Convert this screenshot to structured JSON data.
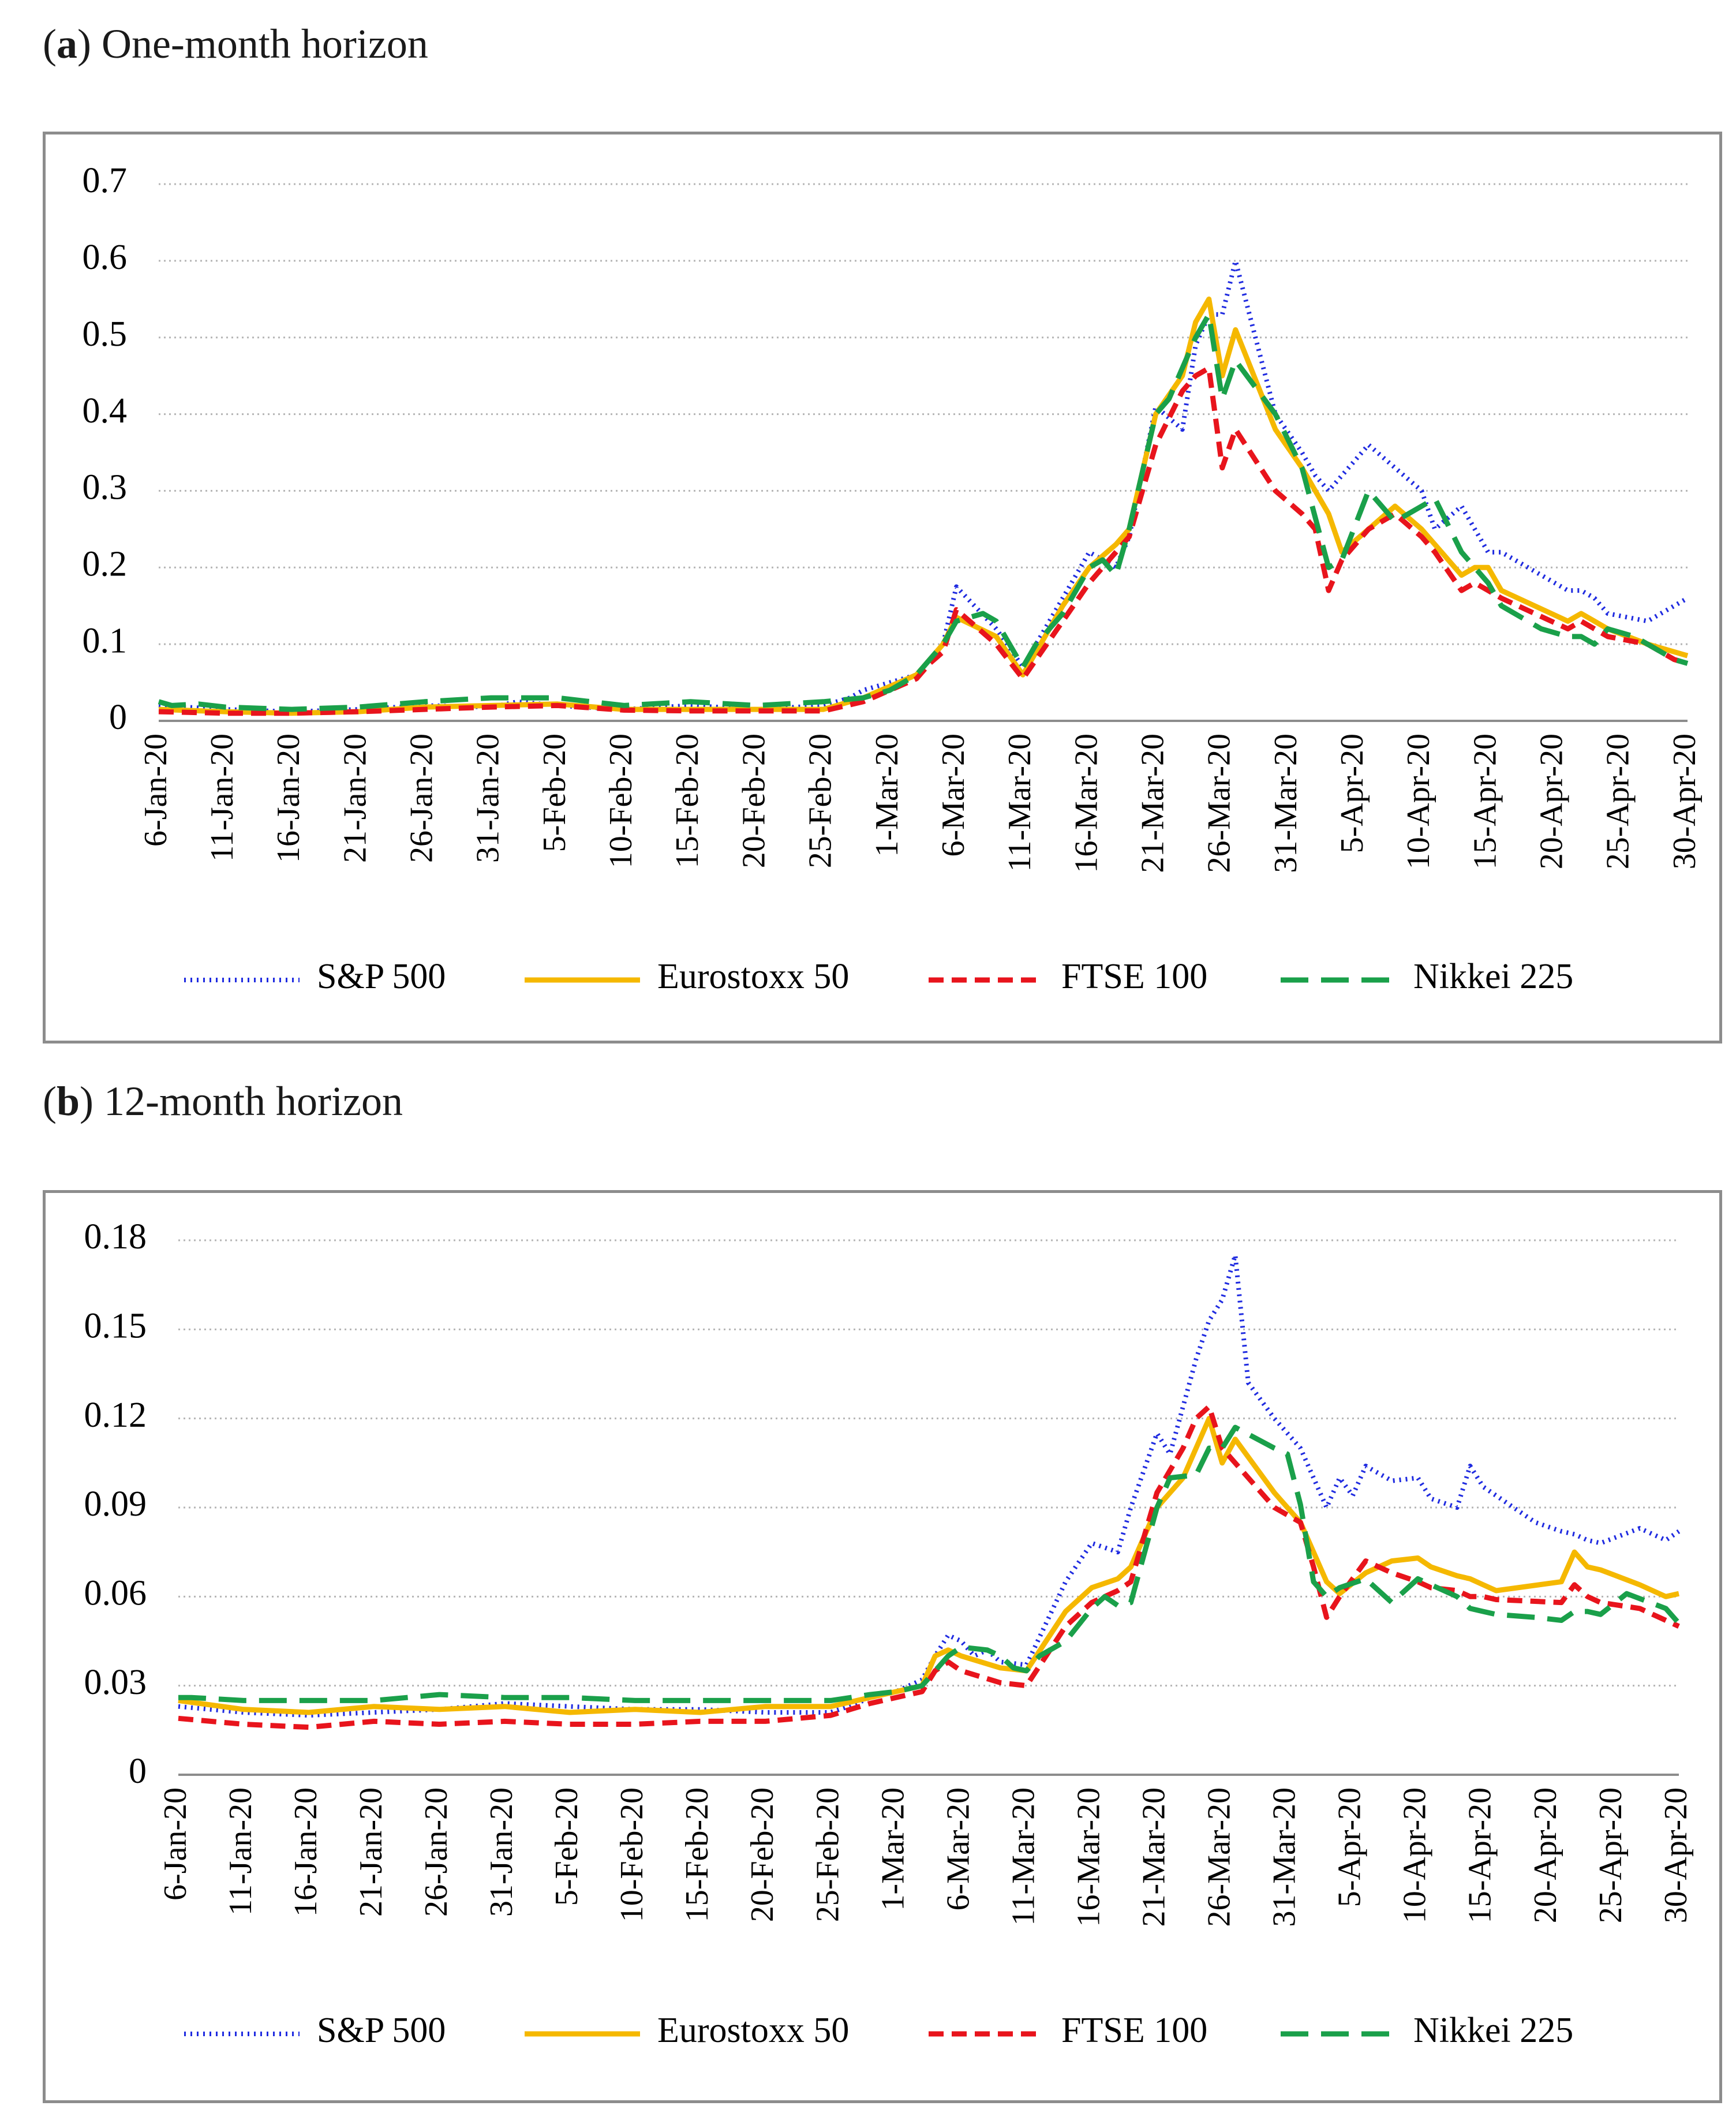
{
  "panels": [
    {
      "letter": "a",
      "title": "One-month horizon"
    },
    {
      "letter": "b",
      "title": "12-month horizon"
    }
  ],
  "series_style": [
    {
      "name": "S&P 500",
      "color": "#1f2be0",
      "dash": "dotted"
    },
    {
      "name": "Eurostoxx 50",
      "color": "#f5b800",
      "dash": "solid"
    },
    {
      "name": "FTSE 100",
      "color": "#e8141c",
      "dash": "dashed"
    },
    {
      "name": "Nikkei 225",
      "color": "#1aa04a",
      "dash": "longdash"
    }
  ],
  "chart_data": [
    {
      "type": "line",
      "title": "(a) One-month horizon",
      "xlabel": "",
      "ylabel": "",
      "ylim": [
        0,
        0.7
      ],
      "yticks": [
        0,
        0.1,
        0.2,
        0.3,
        0.4,
        0.5,
        0.6,
        0.7
      ],
      "ytick_labels": [
        "0",
        "0.1",
        "0.2",
        "0.3",
        "0.4",
        "0.5",
        "0.6",
        "0.7"
      ],
      "x_days_range": [
        0,
        115
      ],
      "xtick_labels": [
        "6-Jan-20",
        "11-Jan-20",
        "16-Jan-20",
        "21-Jan-20",
        "26-Jan-20",
        "31-Jan-20",
        "5-Feb-20",
        "10-Feb-20",
        "15-Feb-20",
        "20-Feb-20",
        "25-Feb-20",
        "1-Mar-20",
        "6-Mar-20",
        "11-Mar-20",
        "16-Mar-20",
        "21-Mar-20",
        "26-Mar-20",
        "31-Mar-20",
        "5-Apr-20",
        "10-Apr-20",
        "15-Apr-20",
        "20-Apr-20",
        "25-Apr-20",
        "30-Apr-20"
      ],
      "x_note": "x values are days since 6-Jan-20",
      "legend": "bottom",
      "series": [
        {
          "name": "S&P 500",
          "x": [
            0,
            2,
            5,
            10,
            15,
            20,
            25,
            27,
            30,
            35,
            40,
            45,
            50,
            52,
            53,
            57,
            58,
            59,
            60,
            63,
            65,
            68,
            70,
            72,
            73,
            75,
            77,
            78,
            79,
            80,
            81,
            84,
            86,
            87,
            88,
            91,
            93,
            95,
            96,
            98,
            100,
            101,
            106,
            107,
            108,
            109,
            112,
            114,
            115
          ],
          "y": [
            0.02,
            0.018,
            0.015,
            0.012,
            0.015,
            0.02,
            0.018,
            0.025,
            0.02,
            0.015,
            0.02,
            0.015,
            0.02,
            0.03,
            0.04,
            0.06,
            0.08,
            0.1,
            0.175,
            0.12,
            0.07,
            0.16,
            0.22,
            0.2,
            0.24,
            0.41,
            0.38,
            0.49,
            0.53,
            0.53,
            0.6,
            0.4,
            0.35,
            0.32,
            0.3,
            0.36,
            0.33,
            0.3,
            0.25,
            0.28,
            0.22,
            0.22,
            0.17,
            0.17,
            0.16,
            0.14,
            0.13,
            0.15,
            0.16
          ]
        },
        {
          "name": "Eurostoxx 50",
          "x": [
            0,
            5,
            10,
            15,
            20,
            25,
            30,
            35,
            40,
            45,
            50,
            53,
            55,
            57,
            58,
            59,
            60,
            63,
            65,
            68,
            70,
            72,
            73,
            75,
            77,
            78,
            79,
            80,
            81,
            84,
            86,
            87,
            88,
            89,
            91,
            93,
            95,
            96,
            98,
            99,
            100,
            101,
            106,
            107,
            108,
            109,
            112,
            114,
            115
          ],
          "y": [
            0.015,
            0.012,
            0.01,
            0.012,
            0.018,
            0.02,
            0.022,
            0.015,
            0.015,
            0.015,
            0.015,
            0.03,
            0.045,
            0.06,
            0.08,
            0.1,
            0.135,
            0.11,
            0.06,
            0.15,
            0.2,
            0.23,
            0.25,
            0.4,
            0.45,
            0.52,
            0.55,
            0.45,
            0.51,
            0.38,
            0.33,
            0.3,
            0.27,
            0.22,
            0.25,
            0.28,
            0.25,
            0.23,
            0.19,
            0.2,
            0.2,
            0.17,
            0.13,
            0.14,
            0.13,
            0.12,
            0.1,
            0.09,
            0.085
          ]
        },
        {
          "name": "FTSE 100",
          "x": [
            0,
            5,
            10,
            15,
            20,
            25,
            30,
            35,
            40,
            45,
            50,
            53,
            55,
            57,
            58,
            59,
            60,
            63,
            65,
            68,
            70,
            72,
            73,
            75,
            77,
            78,
            79,
            80,
            81,
            84,
            86,
            87,
            88,
            89,
            91,
            93,
            95,
            96,
            98,
            99,
            100,
            101,
            106,
            107,
            108,
            109,
            112,
            114,
            115
          ],
          "y": [
            0.012,
            0.01,
            0.01,
            0.012,
            0.015,
            0.018,
            0.02,
            0.014,
            0.013,
            0.013,
            0.013,
            0.025,
            0.04,
            0.055,
            0.075,
            0.09,
            0.145,
            0.1,
            0.055,
            0.13,
            0.18,
            0.22,
            0.24,
            0.36,
            0.43,
            0.45,
            0.46,
            0.33,
            0.38,
            0.3,
            0.27,
            0.25,
            0.17,
            0.21,
            0.25,
            0.27,
            0.24,
            0.22,
            0.17,
            0.18,
            0.17,
            0.16,
            0.12,
            0.13,
            0.12,
            0.11,
            0.1,
            0.08,
            0.075
          ]
        },
        {
          "name": "Nikkei 225",
          "x": [
            0,
            1,
            3,
            5,
            10,
            15,
            20,
            25,
            30,
            35,
            40,
            45,
            50,
            53,
            55,
            57,
            58,
            59,
            60,
            62,
            63,
            64,
            65,
            66,
            68,
            70,
            71,
            72,
            73,
            75,
            76,
            78,
            79,
            80,
            81,
            84,
            86,
            88,
            89,
            91,
            93,
            95,
            96,
            98,
            99,
            100,
            101,
            104,
            106,
            107,
            108,
            109,
            111,
            114,
            115
          ],
          "y": [
            0.025,
            0.02,
            0.022,
            0.018,
            0.015,
            0.018,
            0.025,
            0.03,
            0.03,
            0.02,
            0.025,
            0.02,
            0.025,
            0.03,
            0.04,
            0.06,
            0.08,
            0.1,
            0.13,
            0.14,
            0.13,
            0.1,
            0.07,
            0.1,
            0.14,
            0.2,
            0.21,
            0.19,
            0.25,
            0.4,
            0.42,
            0.5,
            0.53,
            0.42,
            0.47,
            0.4,
            0.33,
            0.2,
            0.21,
            0.3,
            0.26,
            0.28,
            0.29,
            0.22,
            0.2,
            0.18,
            0.15,
            0.12,
            0.11,
            0.11,
            0.1,
            0.12,
            0.11,
            0.08,
            0.075
          ]
        }
      ]
    },
    {
      "type": "line",
      "title": "(b) 12-month horizon",
      "xlabel": "",
      "ylabel": "",
      "ylim": [
        0,
        0.18
      ],
      "yticks": [
        0,
        0.03,
        0.06,
        0.09,
        0.12,
        0.15,
        0.18
      ],
      "ytick_labels": [
        "0",
        "0.03",
        "0.06",
        "0.09",
        "0.12",
        "0.15",
        "0.18"
      ],
      "x_days_range": [
        0,
        115
      ],
      "xtick_labels": [
        "6-Jan-20",
        "11-Jan-20",
        "16-Jan-20",
        "21-Jan-20",
        "26-Jan-20",
        "31-Jan-20",
        "5-Feb-20",
        "10-Feb-20",
        "15-Feb-20",
        "20-Feb-20",
        "25-Feb-20",
        "1-Mar-20",
        "6-Mar-20",
        "11-Mar-20",
        "16-Mar-20",
        "21-Mar-20",
        "26-Mar-20",
        "31-Mar-20",
        "5-Apr-20",
        "10-Apr-20",
        "15-Apr-20",
        "20-Apr-20",
        "25-Apr-20",
        "30-Apr-20"
      ],
      "x_note": "x values are days since 6-Jan-20",
      "legend": "bottom",
      "series": [
        {
          "name": "S&P 500",
          "x": [
            0,
            5,
            10,
            15,
            20,
            25,
            30,
            35,
            40,
            45,
            50,
            52,
            53,
            55,
            56,
            57,
            58,
            59,
            60,
            61,
            62,
            63,
            65,
            68,
            70,
            72,
            73,
            75,
            76,
            78,
            79,
            80,
            81,
            82,
            84,
            86,
            87,
            88,
            89,
            90,
            91,
            93,
            95,
            96,
            98,
            99,
            100,
            101,
            104,
            106,
            107,
            108,
            109,
            112,
            114,
            115
          ],
          "y": [
            0.023,
            0.021,
            0.02,
            0.021,
            0.022,
            0.024,
            0.023,
            0.022,
            0.022,
            0.021,
            0.021,
            0.024,
            0.026,
            0.028,
            0.03,
            0.032,
            0.04,
            0.047,
            0.045,
            0.04,
            0.042,
            0.038,
            0.037,
            0.065,
            0.078,
            0.075,
            0.09,
            0.115,
            0.108,
            0.14,
            0.153,
            0.16,
            0.175,
            0.132,
            0.12,
            0.11,
            0.1,
            0.09,
            0.1,
            0.094,
            0.104,
            0.099,
            0.1,
            0.093,
            0.09,
            0.104,
            0.097,
            0.094,
            0.085,
            0.082,
            0.081,
            0.079,
            0.078,
            0.083,
            0.079,
            0.082
          ]
        },
        {
          "name": "Eurostoxx 50",
          "x": [
            0,
            5,
            10,
            15,
            20,
            25,
            30,
            35,
            40,
            45,
            50,
            53,
            55,
            57,
            58,
            59,
            60,
            63,
            65,
            68,
            70,
            72,
            73,
            75,
            77,
            78,
            79,
            80,
            81,
            84,
            86,
            87,
            88,
            89,
            91,
            93,
            95,
            96,
            98,
            99,
            100,
            101,
            106,
            107,
            108,
            109,
            112,
            114,
            115
          ],
          "y": [
            0.025,
            0.022,
            0.021,
            0.023,
            0.022,
            0.023,
            0.021,
            0.022,
            0.021,
            0.023,
            0.023,
            0.026,
            0.028,
            0.03,
            0.04,
            0.042,
            0.04,
            0.036,
            0.035,
            0.055,
            0.063,
            0.066,
            0.07,
            0.09,
            0.1,
            0.11,
            0.12,
            0.105,
            0.113,
            0.095,
            0.085,
            0.075,
            0.065,
            0.061,
            0.068,
            0.072,
            0.073,
            0.07,
            0.067,
            0.066,
            0.064,
            0.062,
            0.065,
            0.075,
            0.07,
            0.069,
            0.064,
            0.06,
            0.061
          ]
        },
        {
          "name": "FTSE 100",
          "x": [
            0,
            5,
            10,
            15,
            20,
            25,
            30,
            35,
            40,
            45,
            50,
            53,
            55,
            57,
            58,
            59,
            60,
            63,
            65,
            68,
            70,
            72,
            73,
            75,
            77,
            78,
            79,
            80,
            81,
            84,
            86,
            87,
            88,
            89,
            91,
            93,
            95,
            96,
            98,
            99,
            100,
            101,
            106,
            107,
            108,
            109,
            112,
            114,
            115
          ],
          "y": [
            0.019,
            0.017,
            0.016,
            0.018,
            0.017,
            0.018,
            0.017,
            0.017,
            0.018,
            0.018,
            0.02,
            0.024,
            0.026,
            0.028,
            0.035,
            0.038,
            0.035,
            0.031,
            0.03,
            0.05,
            0.058,
            0.062,
            0.065,
            0.095,
            0.11,
            0.12,
            0.124,
            0.11,
            0.105,
            0.09,
            0.085,
            0.07,
            0.053,
            0.06,
            0.072,
            0.068,
            0.065,
            0.063,
            0.062,
            0.06,
            0.06,
            0.059,
            0.058,
            0.064,
            0.06,
            0.058,
            0.056,
            0.052,
            0.05
          ]
        },
        {
          "name": "Nikkei 225",
          "x": [
            0,
            1,
            5,
            10,
            15,
            20,
            25,
            30,
            35,
            40,
            45,
            50,
            53,
            55,
            57,
            58,
            59,
            60,
            62,
            63,
            64,
            65,
            66,
            68,
            70,
            71,
            72,
            73,
            75,
            76,
            78,
            79,
            80,
            81,
            84,
            85,
            86,
            87,
            88,
            89,
            91,
            93,
            95,
            96,
            98,
            99,
            100,
            101,
            104,
            106,
            107,
            108,
            109,
            111,
            114,
            115
          ],
          "y": [
            0.026,
            0.026,
            0.025,
            0.025,
            0.025,
            0.027,
            0.026,
            0.026,
            0.025,
            0.025,
            0.025,
            0.025,
            0.027,
            0.028,
            0.03,
            0.035,
            0.04,
            0.043,
            0.042,
            0.04,
            0.036,
            0.035,
            0.04,
            0.045,
            0.056,
            0.06,
            0.057,
            0.058,
            0.09,
            0.1,
            0.101,
            0.11,
            0.11,
            0.117,
            0.11,
            0.108,
            0.091,
            0.065,
            0.06,
            0.063,
            0.066,
            0.058,
            0.066,
            0.064,
            0.06,
            0.056,
            0.055,
            0.054,
            0.053,
            0.052,
            0.055,
            0.055,
            0.054,
            0.061,
            0.056,
            0.051
          ]
        }
      ]
    }
  ]
}
